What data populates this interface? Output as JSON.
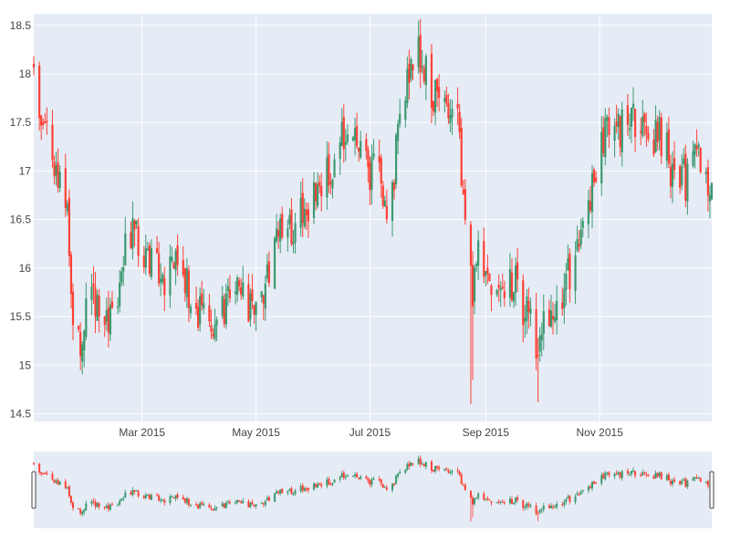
{
  "chart_data": {
    "type": "candlestick",
    "x_range": [
      "2015-01-02",
      "2015-12-31"
    ],
    "y_range": [
      14.42,
      18.62
    ],
    "y_ticks": [
      14.5,
      15,
      15.5,
      16,
      16.5,
      17,
      17.5,
      18,
      18.5
    ],
    "y_tick_labels": [
      "14.5",
      "15",
      "15.5",
      "16",
      "16.5",
      "17",
      "17.5",
      "18",
      "18.5"
    ],
    "x_ticks": [
      "2015-03-01",
      "2015-05-01",
      "2015-07-01",
      "2015-09-01",
      "2015-11-01"
    ],
    "x_tick_labels": [
      "Mar 2015",
      "May 2015",
      "Jul 2015",
      "Sep 2015",
      "Nov 2015"
    ],
    "increasing_color": "#3D9970",
    "decreasing_color": "#FF4136",
    "background_color": "#E5ECF6",
    "grid_color": "#FFFFFF",
    "rangeslider": true,
    "grid": true,
    "legend": false,
    "anchors": [
      [
        "2015-01-02",
        18.0
      ],
      [
        "2015-01-06",
        17.5
      ],
      [
        "2015-01-09",
        17.3
      ],
      [
        "2015-01-14",
        17.0
      ],
      [
        "2015-01-20",
        16.5
      ],
      [
        "2015-01-23",
        15.4
      ],
      [
        "2015-01-28",
        15.2
      ],
      [
        "2015-02-02",
        15.9
      ],
      [
        "2015-02-06",
        15.5
      ],
      [
        "2015-02-12",
        15.4
      ],
      [
        "2015-02-18",
        16.0
      ],
      [
        "2015-02-24",
        16.5
      ],
      [
        "2015-03-02",
        16.2
      ],
      [
        "2015-03-06",
        16.1
      ],
      [
        "2015-03-12",
        15.8
      ],
      [
        "2015-03-18",
        16.1
      ],
      [
        "2015-03-24",
        15.8
      ],
      [
        "2015-03-31",
        15.6
      ],
      [
        "2015-04-07",
        15.4
      ],
      [
        "2015-04-14",
        15.6
      ],
      [
        "2015-04-21",
        15.7
      ],
      [
        "2015-04-28",
        15.55
      ],
      [
        "2015-05-05",
        15.7
      ],
      [
        "2015-05-12",
        16.3
      ],
      [
        "2015-05-19",
        16.4
      ],
      [
        "2015-05-26",
        16.6
      ],
      [
        "2015-06-02",
        16.7
      ],
      [
        "2015-06-09",
        17.0
      ],
      [
        "2015-06-16",
        17.3
      ],
      [
        "2015-06-22",
        17.35
      ],
      [
        "2015-06-26",
        17.1
      ],
      [
        "2015-07-01",
        17.0
      ],
      [
        "2015-07-06",
        16.9
      ],
      [
        "2015-07-09",
        16.5
      ],
      [
        "2015-07-14",
        17.0
      ],
      [
        "2015-07-20",
        17.9
      ],
      [
        "2015-07-27",
        18.2
      ],
      [
        "2015-08-03",
        17.8
      ],
      [
        "2015-08-10",
        17.7
      ],
      [
        "2015-08-17",
        17.6
      ],
      [
        "2015-08-21",
        16.5
      ],
      [
        "2015-08-25",
        15.7
      ],
      [
        "2015-08-28",
        16.2
      ],
      [
        "2015-09-03",
        15.7
      ],
      [
        "2015-09-10",
        15.9
      ],
      [
        "2015-09-17",
        15.8
      ],
      [
        "2015-09-24",
        15.5
      ],
      [
        "2015-09-29",
        15.1
      ],
      [
        "2015-10-05",
        15.6
      ],
      [
        "2015-10-12",
        15.8
      ],
      [
        "2015-10-19",
        16.1
      ],
      [
        "2015-10-26",
        16.5
      ],
      [
        "2015-10-30",
        17.0
      ],
      [
        "2015-11-05",
        17.6
      ],
      [
        "2015-11-12",
        17.4
      ],
      [
        "2015-11-19",
        17.5
      ],
      [
        "2015-11-26",
        17.3
      ],
      [
        "2015-12-03",
        17.4
      ],
      [
        "2015-12-10",
        17.0
      ],
      [
        "2015-12-17",
        16.9
      ],
      [
        "2015-12-23",
        17.1
      ],
      [
        "2015-12-31",
        16.9
      ]
    ]
  }
}
